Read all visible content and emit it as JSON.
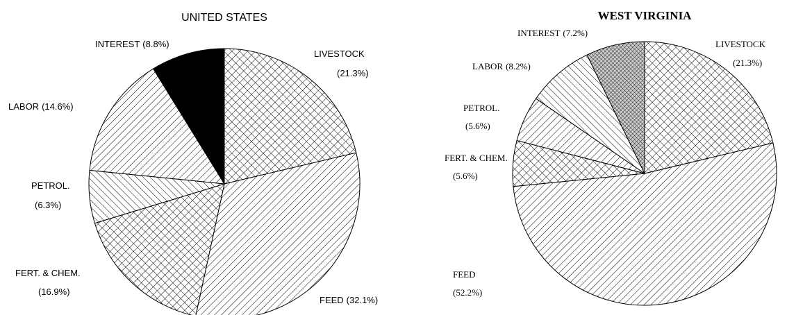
{
  "chart_data": [
    {
      "type": "pie",
      "title": "UNITED STATES",
      "categories": [
        "LIVESTOCK",
        "FEED",
        "FERT. & CHEM.",
        "PETROL.",
        "LABOR",
        "INTEREST"
      ],
      "values": [
        21.3,
        32.1,
        16.9,
        6.3,
        14.6,
        8.8
      ],
      "value_labels": [
        "(21.3%)",
        "(32.1%)",
        "(16.9%)",
        "(6.3%)",
        "(14.6%)",
        "(8.8%)"
      ]
    },
    {
      "type": "pie",
      "title": "WEST VIRGINIA",
      "categories": [
        "LIVESTOCK",
        "FEED",
        "FERT. & CHEM.",
        "PETROL.",
        "LABOR",
        "INTEREST"
      ],
      "values": [
        21.3,
        52.2,
        5.6,
        5.6,
        8.2,
        7.2
      ],
      "value_labels": [
        "(21.3%)",
        "(52.2%)",
        "(5.6%)",
        "(5.6%)",
        "(8.2%)",
        "(7.2%)"
      ]
    }
  ]
}
